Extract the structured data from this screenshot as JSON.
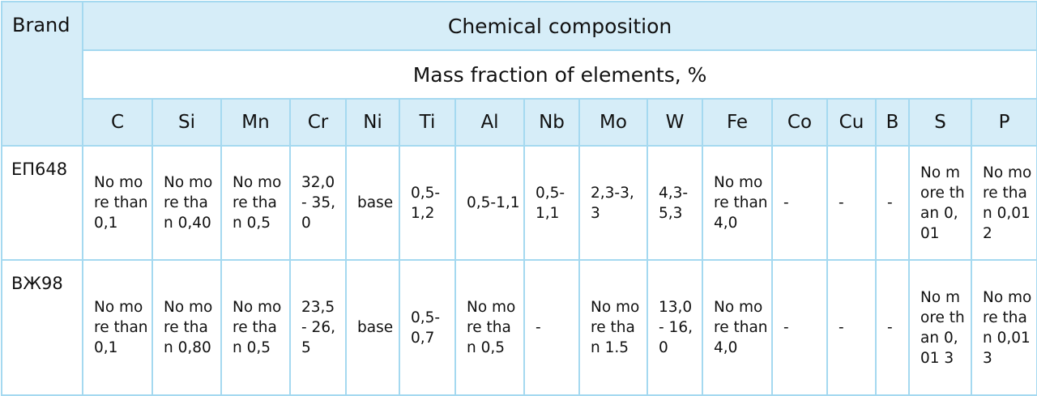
{
  "table": {
    "brand_header": "Brand",
    "title": "Chemical composition",
    "subtitle": "Mass fraction of elements, %",
    "elements": [
      "C",
      "Si",
      "Mn",
      "Cr",
      "Ni",
      "Ti",
      "Al",
      "Nb",
      "Mo",
      "W",
      "Fe",
      "Co",
      "Cu",
      "B",
      "S",
      "P"
    ],
    "rows": [
      {
        "brand": "ЕП648",
        "values": [
          "No more than 0,1",
          "No more than 0,40",
          "No more than 0,5",
          "32,0 - 35,0",
          "base",
          "0,5-1,2",
          "0,5-1,1",
          "0,5-1,1",
          "2,3-3,3",
          "4,3-5,3",
          "No more than 4,0",
          "-",
          "-",
          "-",
          "No more than 0,01",
          "No more than 0,012"
        ]
      },
      {
        "brand": "ВЖ98",
        "values": [
          "No more than 0,1",
          "No more than 0,80",
          "No more than 0,5",
          "23,5 - 26,5",
          "base",
          "0,5-0,7",
          "No more than 0,5",
          "-",
          "No more than 1.5",
          "13,0 - 16,0",
          "No more than 4,0",
          "-",
          "-",
          "-",
          "No more than 0,01 3",
          "No more than 0,013"
        ]
      }
    ]
  }
}
